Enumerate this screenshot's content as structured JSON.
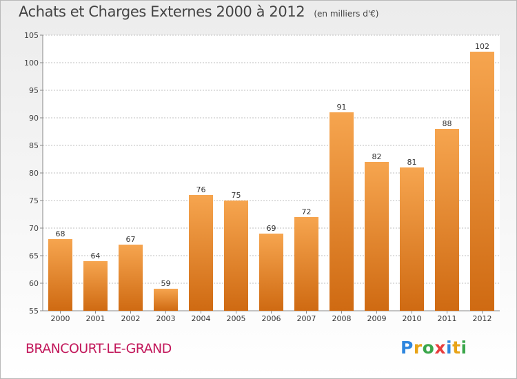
{
  "header": {
    "title": "Achats et Charges Externes 2000 à 2012",
    "subtitle": "(en milliers d'€)"
  },
  "footer": {
    "commune": "BRANCOURT-LE-GRAND",
    "logo_letters": [
      "P",
      "r",
      "o",
      "x",
      "i",
      "t",
      "i"
    ]
  },
  "colors": {
    "bar_light": "#f6a54f",
    "bar_dark": "#cf6a12",
    "commune": "#c2185b",
    "logo": [
      "#2e86de",
      "#e8a317",
      "#3aa64a",
      "#e83e3e",
      "#2e86de",
      "#e8a317",
      "#3aa64a"
    ]
  },
  "chart_data": {
    "type": "bar",
    "title": "Achats et Charges Externes 2000 à 2012",
    "subtitle": "(en milliers d'€)",
    "categories": [
      "2000",
      "2001",
      "2002",
      "2003",
      "2004",
      "2005",
      "2006",
      "2007",
      "2008",
      "2009",
      "2010",
      "2011",
      "2012"
    ],
    "values": [
      68,
      64,
      67,
      59,
      76,
      75,
      69,
      72,
      91,
      82,
      81,
      88,
      102
    ],
    "ylim": [
      55,
      105
    ],
    "yticks": [
      55,
      60,
      65,
      70,
      75,
      80,
      85,
      90,
      95,
      100,
      105
    ],
    "grid": true,
    "data_labels": true,
    "legend": "none"
  }
}
